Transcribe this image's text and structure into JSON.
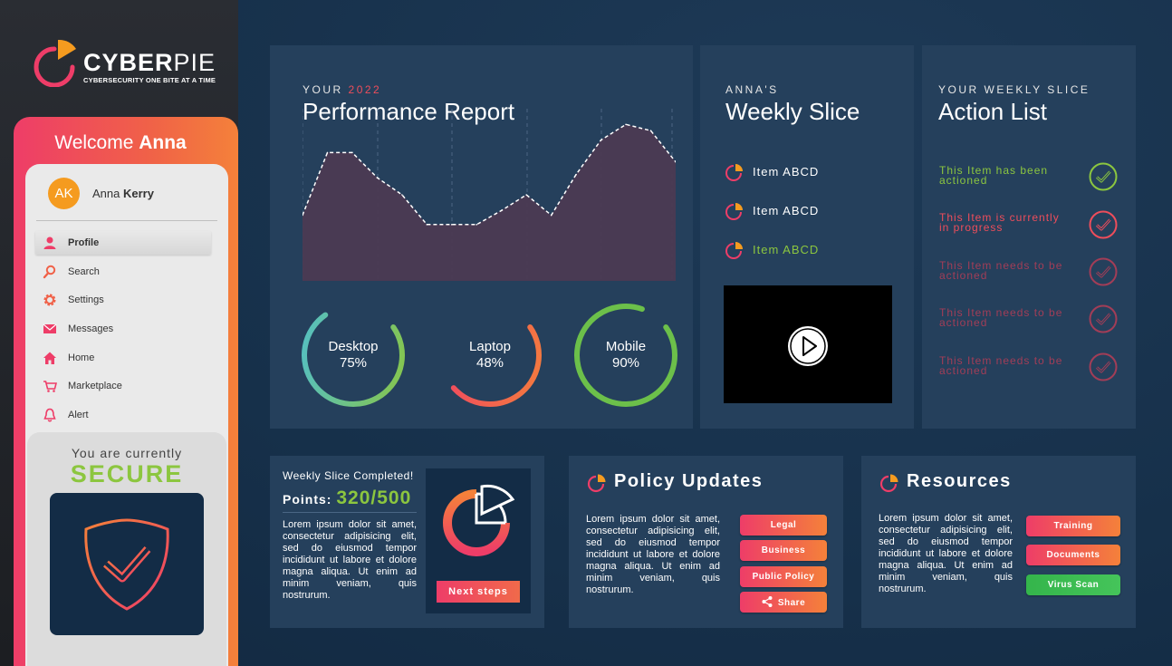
{
  "brand": {
    "name_bold": "CYBER",
    "name_light": "PIE",
    "tagline": "CYBERSECURITY ONE BITE AT A TIME",
    "accent": "#ee3d68"
  },
  "sidebar": {
    "welcome_prefix": "Welcome",
    "welcome_name": "Anna",
    "user": {
      "initials": "AK",
      "first_name": "Anna",
      "last_name": "Kerry"
    },
    "nav": [
      {
        "label": "Profile",
        "icon": "user-icon"
      },
      {
        "label": "Search",
        "icon": "search-icon"
      },
      {
        "label": "Settings",
        "icon": "gear-icon"
      },
      {
        "label": "Messages",
        "icon": "envelope-icon"
      },
      {
        "label": "Home",
        "icon": "home-icon"
      },
      {
        "label": "Marketplace",
        "icon": "cart-icon"
      },
      {
        "label": "Alert",
        "icon": "bell-icon"
      }
    ],
    "status": {
      "label": "You are currently",
      "value": "SECURE",
      "color": "#8cc63f"
    }
  },
  "performance": {
    "kicker_prefix": "YOUR",
    "kicker_year": "2022",
    "title": "Performance Report",
    "chart_data": {
      "type": "area",
      "values": [
        42,
        82,
        82,
        66,
        55,
        36,
        36,
        36,
        45,
        55,
        42,
        68,
        90,
        100,
        96,
        76
      ],
      "ylim": [
        0,
        110
      ]
    },
    "gauges": [
      {
        "label": "Desktop",
        "value": "75%",
        "percent": 75
      },
      {
        "label": "Laptop",
        "value": "48%",
        "percent": 48
      },
      {
        "label": "Mobile",
        "value": "90%",
        "percent": 90
      }
    ]
  },
  "weekly": {
    "kicker": "ANNA'S",
    "title": "Weekly Slice",
    "items": [
      {
        "label": "Item ABCD",
        "status": "pending"
      },
      {
        "label": "Item ABCD",
        "status": "pending"
      },
      {
        "label": "Item ABCD",
        "status": "done"
      }
    ]
  },
  "actions": {
    "kicker": "YOUR WEEKLY SLICE",
    "title": "Action List",
    "items": [
      {
        "line1": "This Item has been",
        "line2": "actioned",
        "color": "#8cc63f"
      },
      {
        "line1": "This Item is currently",
        "line2": "in progress",
        "color": "#ee4d5b"
      },
      {
        "line1": "This Item needs to be",
        "line2": "actioned",
        "color": "#a23d57"
      },
      {
        "line1": "This Item needs to be",
        "line2": "actioned",
        "color": "#a23d57"
      },
      {
        "line1": "This Item needs to be",
        "line2": "actioned",
        "color": "#a23d57"
      }
    ]
  },
  "points": {
    "heading": "Weekly Slice Completed!",
    "label": "Points:",
    "value": "320/500",
    "body": "Lorem ipsum dolor sit amet, consectetur adipisicing elit, sed do eiusmod tempor incididunt ut labore et dolore magna aliqua. Ut enim ad minim veniam, quis nostrurum.",
    "button": "Next steps"
  },
  "policy": {
    "title": "Policy Updates",
    "body": "Lorem ipsum dolor sit amet, consectetur adipisicing elit, sed do eiusmod tempor incididunt ut labore et dolore magna aliqua. Ut enim ad minim veniam, quis nostrurum.",
    "buttons": [
      "Legal",
      "Business",
      "Public Policy",
      "Share"
    ]
  },
  "resources": {
    "title": "Resources",
    "body": "Lorem ipsum dolor sit amet, consectetur adipisicing elit, sed do eiusmod tempor incididunt ut labore et dolore magna aliqua. Ut enim ad minim veniam, quis nostrurum.",
    "buttons": [
      "Training",
      "Documents",
      "Virus Scan"
    ]
  }
}
